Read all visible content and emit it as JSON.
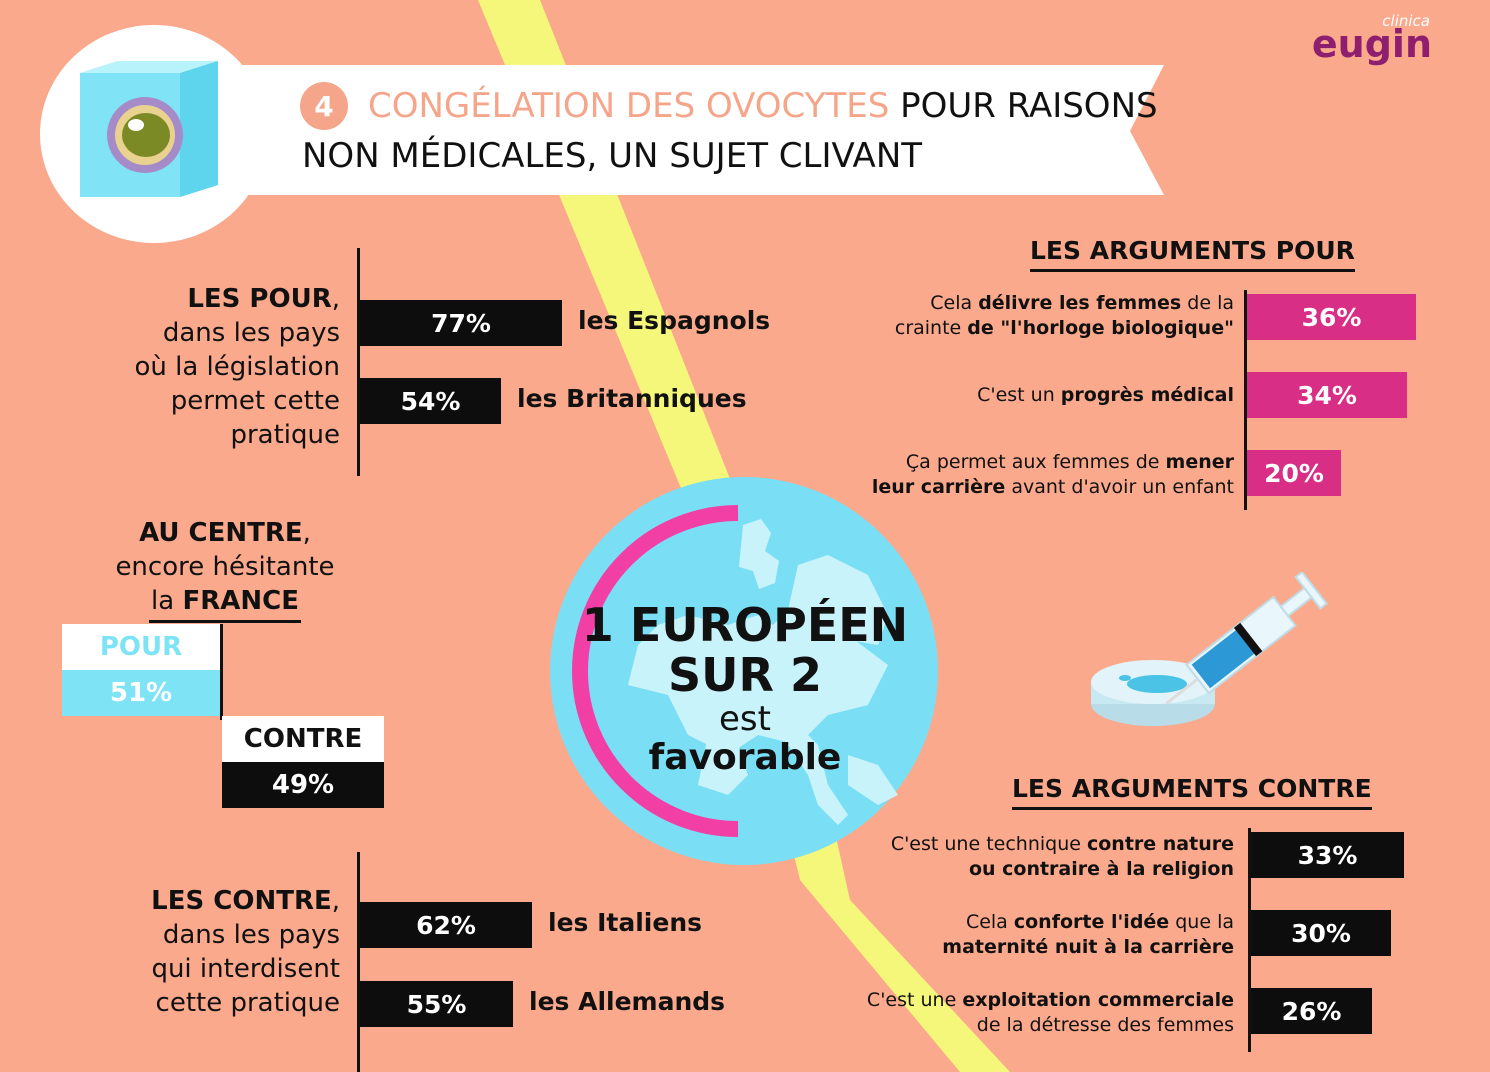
{
  "brand": {
    "small": "clinica",
    "name": "eugin"
  },
  "header": {
    "number": "4",
    "title_highlight": "CONGÉLATION DES OVOCYTES",
    "title_rest": "POUR RAISONS",
    "title_line2": "NON MÉDICALES, UN SUJET CLIVANT"
  },
  "pour_section": {
    "heading": "LES POUR",
    "heading_suffix": ",",
    "desc_lines": [
      "dans les pays",
      "où la législation",
      "permet cette",
      "pratique"
    ]
  },
  "centre_section": {
    "heading": "AU CENTRE",
    "heading_suffix": ",",
    "line2": "encore hésitante",
    "line3_prefix": "la ",
    "line3_bold": "FRANCE",
    "pour_label": "POUR",
    "pour_value": "51%",
    "contre_label": "CONTRE",
    "contre_value": "49%"
  },
  "contre_section": {
    "heading": "LES CONTRE",
    "heading_suffix": ",",
    "desc_lines": [
      "dans les pays",
      "qui interdisent",
      "cette pratique"
    ]
  },
  "globe": {
    "line1": "1 EUROPÉEN",
    "line2": "SUR 2",
    "line3": "est",
    "line4": "favorable"
  },
  "args_pour": {
    "heading": "LES ARGUMENTS POUR",
    "items": [
      {
        "l1a": "Cela ",
        "l1b": "délivre les femmes",
        "l1c": " de la",
        "l2a": "crainte ",
        "l2b": "de \"l'horloge biologique\"",
        "value": "36%"
      },
      {
        "l1a": "C'est un ",
        "l1b": "progrès médical",
        "l1c": "",
        "value": "34%"
      },
      {
        "l1a": "Ça permet aux femmes de ",
        "l1b": "mener",
        "l1c": "",
        "l2a": "",
        "l2b": "leur carrière",
        "l2c": " avant d'avoir un enfant",
        "value": "20%"
      }
    ]
  },
  "args_contre": {
    "heading": "LES ARGUMENTS CONTRE",
    "items": [
      {
        "l1a": "C'est une technique ",
        "l1b": "contre nature",
        "l2b": "ou contraire à la religion",
        "value": "33%"
      },
      {
        "l1a": "Cela ",
        "l1b": "conforte l'idée",
        "l1c": " que la",
        "l2b": "maternité nuit à la carrière",
        "value": "30%"
      },
      {
        "l1a": "C'est une ",
        "l1b": "exploitation commerciale",
        "l2a": "de la détresse des femmes",
        "value": "26%"
      }
    ]
  },
  "chart_data": [
    {
      "type": "bar",
      "categories": [
        "les Espagnols",
        "les Britanniques"
      ],
      "values": [
        77,
        54
      ],
      "unit": "%"
    },
    {
      "type": "bar",
      "categories": [
        "POUR",
        "CONTRE"
      ],
      "values": [
        51,
        49
      ],
      "unit": "%"
    },
    {
      "type": "bar",
      "categories": [
        "les Italiens",
        "les Allemands"
      ],
      "values": [
        62,
        55
      ],
      "unit": "%"
    },
    {
      "type": "bar",
      "title": "LES ARGUMENTS POUR",
      "categories": [
        "Cela délivre les femmes de la crainte de \"l'horloge biologique\"",
        "C'est un progrès médical",
        "Ça permet aux femmes de mener leur carrière avant d'avoir un enfant"
      ],
      "values": [
        36,
        34,
        20
      ],
      "unit": "%"
    },
    {
      "type": "bar",
      "title": "LES ARGUMENTS CONTRE",
      "categories": [
        "C'est une technique contre nature ou contraire à la religion",
        "Cela conforte l'idée que la maternité nuit à la carrière",
        "C'est une exploitation commerciale de la détresse des femmes"
      ],
      "values": [
        33,
        30,
        26
      ],
      "unit": "%"
    }
  ],
  "colors": {
    "background": "#FBA98C",
    "lightning": "#F4F77A",
    "globe": "#7ADFF5",
    "pink": "#D92E86",
    "arc": "#F23FA5",
    "cyan_bar": "#7FE3F6",
    "highlight_text": "#F4A58A"
  }
}
